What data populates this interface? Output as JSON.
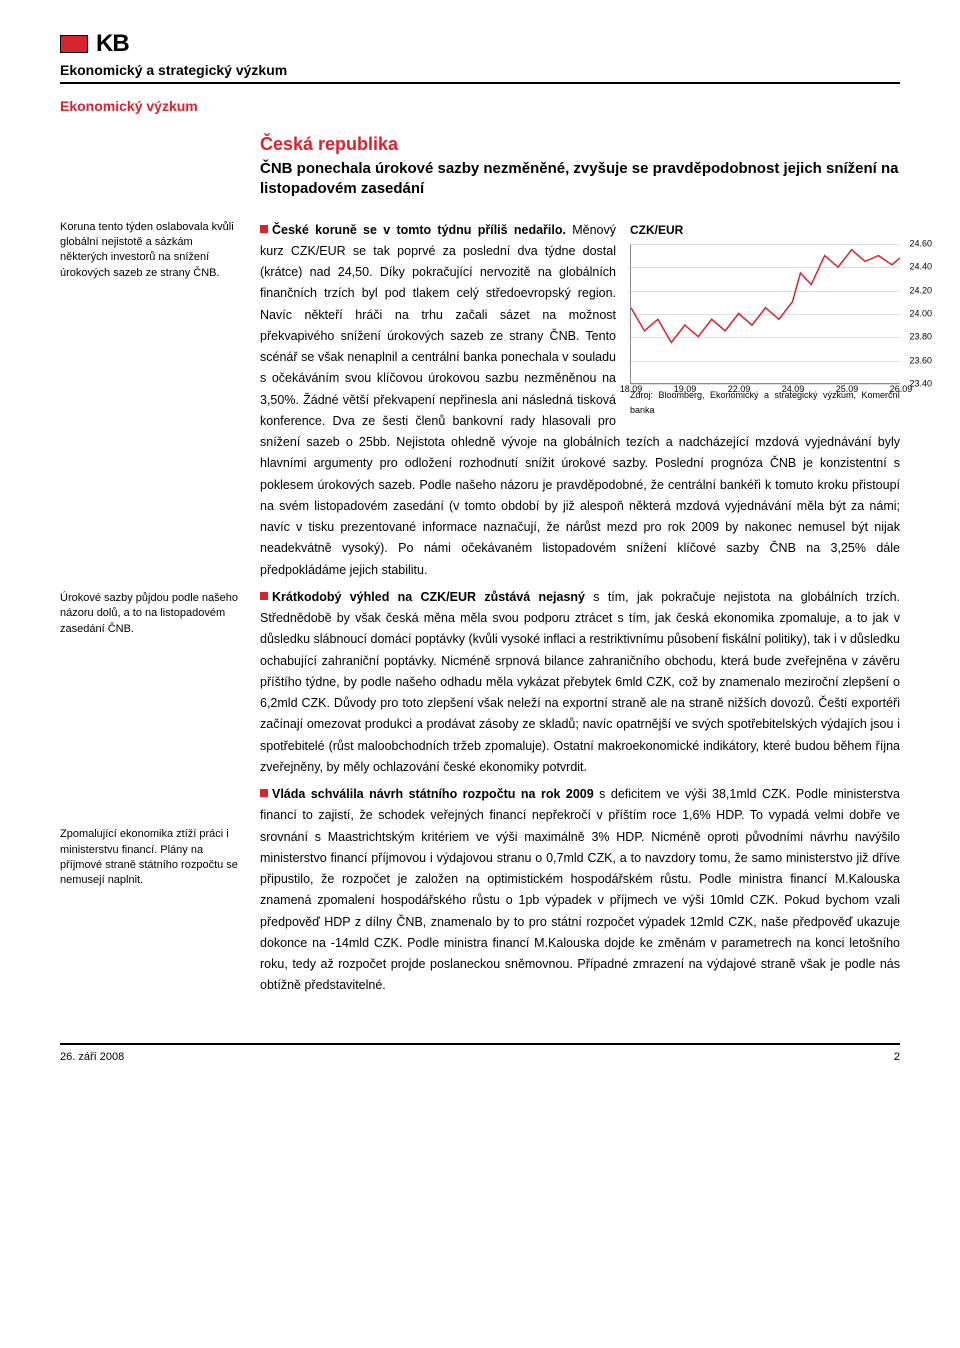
{
  "header": {
    "logo_text": "KB",
    "department": "Ekonomický a strategický výzkum",
    "subdepartment": "Ekonomický výzkum"
  },
  "title": {
    "country": "Česká republika",
    "headline": "ČNB ponechala úrokové sazby nezměněné, zvyšuje se pravděpodobnost jejich snížení na listopadovém zasedání"
  },
  "side_notes": [
    "Koruna tento týden oslabovala kvůli globální nejistotě a sázkám některých investorů na snížení úrokových sazeb ze strany ČNB.",
    "Úrokové sazby půjdou podle našeho názoru dolů, a to na listopadovém zasedání ČNB.",
    "Zpomalující ekonomika ztíží práci i ministerstvu financí. Plány na příjmové straně státního rozpočtu se nemusejí naplnit."
  ],
  "paragraphs": [
    {
      "lead": "České koruně se v tomto týdnu příliš nedařilo.",
      "body": " Měnový kurz CZK/EUR se tak poprvé za poslední dva týdne dostal (krátce) nad 24,50. Díky pokračující nervozitě na globálních finančních trzích byl pod tlakem celý středoevropský region. Navíc někteří hráči na trhu začali sázet na možnost překvapivého snížení úrokových sazeb ze strany ČNB. Tento scénář se však nenaplnil a centrální banka ponechala v souladu s očekáváním svou klíčovou úrokovou sazbu nezměněnou na 3,50%. Žádné větší překvapení nepřinesla ani následná tisková konference. Dva ze šesti členů bankovní rady hlasovali pro snížení sazeb o 25bb. Nejistota ohledně vývoje na globálních tezích a nadcházející mzdová vyjednávání byly hlavními argumenty pro odložení rozhodnutí snížit úrokové sazby. Poslední prognóza ČNB je konzistentní s poklesem úrokových sazeb. Podle našeho názoru je pravděpodobné, že centrální bankéři k tomuto kroku přistoupí na svém listopadovém zasedání (v tomto období by již alespoň některá mzdová vyjednávání měla být za námi; navíc v tisku prezentované informace naznačují, že nárůst mezd pro rok 2009 by nakonec nemusel být nijak neadekvátně vysoký). Po námi očekávaném listopadovém snížení klíčové sazby ČNB na 3,25% dále předpokládáme jejich stabilitu."
    },
    {
      "lead": "Krátkodobý výhled na CZK/EUR zůstává nejasný",
      "body": " s tím, jak pokračuje nejistota na globálních trzích. Střednědobě by však česká měna měla svou podporu ztrácet s tím, jak česká ekonomika zpomaluje, a to jak v důsledku slábnoucí domácí poptávky (kvůli vysoké inflaci a restriktivnímu působení fiskální politiky), tak i v důsledku ochabující zahraniční poptávky. Nicméně srpnová bilance zahraničního obchodu, která bude zveřejněna v závěru příštího týdne, by podle našeho odhadu měla vykázat přebytek 6mld CZK, což by znamenalo meziroční zlepšení o 6,2mld CZK. Důvody pro toto zlepšení však neleží na exportní straně ale na straně nižších dovozů. Čeští exportéři začínají omezovat produkci a prodávat zásoby ze skladů; navíc opatrnější ve svých spotřebitelských výdajích jsou i spotřebitelé (růst maloobchodních tržeb zpomaluje). Ostatní makroekonomické indikátory, které budou během října zveřejněny, by měly ochlazování české ekonomiky potvrdit."
    },
    {
      "lead": "Vláda schválila návrh státního rozpočtu na rok 2009",
      "body": " s deficitem ve výši 38,1mld CZK. Podle ministerstva financí to zajistí, že schodek veřejných financí nepřekročí v příštím roce 1,6% HDP. To vypadá velmi dobře ve srovnání s Maastrichtským kritériem ve výši maximálně 3% HDP. Nicméně oproti původními návrhu navýšilo ministerstvo financí příjmovou i výdajovou stranu o 0,7mld CZK, a to navzdory tomu, že samo ministerstvo již dříve připustilo, že rozpočet je založen na optimistickém hospodářském růstu. Podle ministra financí M.Kalouska znamená zpomalení hospodářského růstu o 1pb výpadek v příjmech ve výši 10mld CZK. Pokud bychom vzali předpověď HDP z dílny ČNB, znamenalo by to pro státní rozpočet výpadek 12mld CZK, naše předpověď ukazuje dokonce na -14mld CZK. Podle ministra financí M.Kalouska dojde ke změnám v parametrech na konci letošního roku, tedy až rozpočet projde poslaneckou sněmovnou. Případné zmrazení na výdajové straně však je podle nás obtížně představitelné."
    }
  ],
  "chart": {
    "title": "CZK/EUR",
    "type": "line",
    "x_labels": [
      "18.09",
      "19.09",
      "22.09",
      "24.09",
      "25.09",
      "26.09"
    ],
    "y_labels": [
      "24.60",
      "24.40",
      "24.20",
      "24.00",
      "23.80",
      "23.60",
      "23.40"
    ],
    "ylim": [
      23.4,
      24.6
    ],
    "line_color": "#d9232e",
    "background_color": "#ffffff",
    "grid_color": "#dddddd",
    "label_fontsize": 9,
    "points": [
      [
        0.0,
        24.05
      ],
      [
        0.05,
        23.85
      ],
      [
        0.1,
        23.95
      ],
      [
        0.15,
        23.75
      ],
      [
        0.2,
        23.9
      ],
      [
        0.25,
        23.8
      ],
      [
        0.3,
        23.95
      ],
      [
        0.35,
        23.85
      ],
      [
        0.4,
        24.0
      ],
      [
        0.45,
        23.9
      ],
      [
        0.5,
        24.05
      ],
      [
        0.55,
        23.95
      ],
      [
        0.6,
        24.1
      ],
      [
        0.63,
        24.35
      ],
      [
        0.67,
        24.25
      ],
      [
        0.72,
        24.5
      ],
      [
        0.77,
        24.4
      ],
      [
        0.82,
        24.55
      ],
      [
        0.87,
        24.45
      ],
      [
        0.92,
        24.5
      ],
      [
        0.97,
        24.42
      ],
      [
        1.0,
        24.48
      ]
    ],
    "source": "Zdroj: Bloomberg, Ekonomický a strategický výzkum, Komerční banka"
  },
  "footer": {
    "date": "26. září 2008",
    "page": "2"
  }
}
